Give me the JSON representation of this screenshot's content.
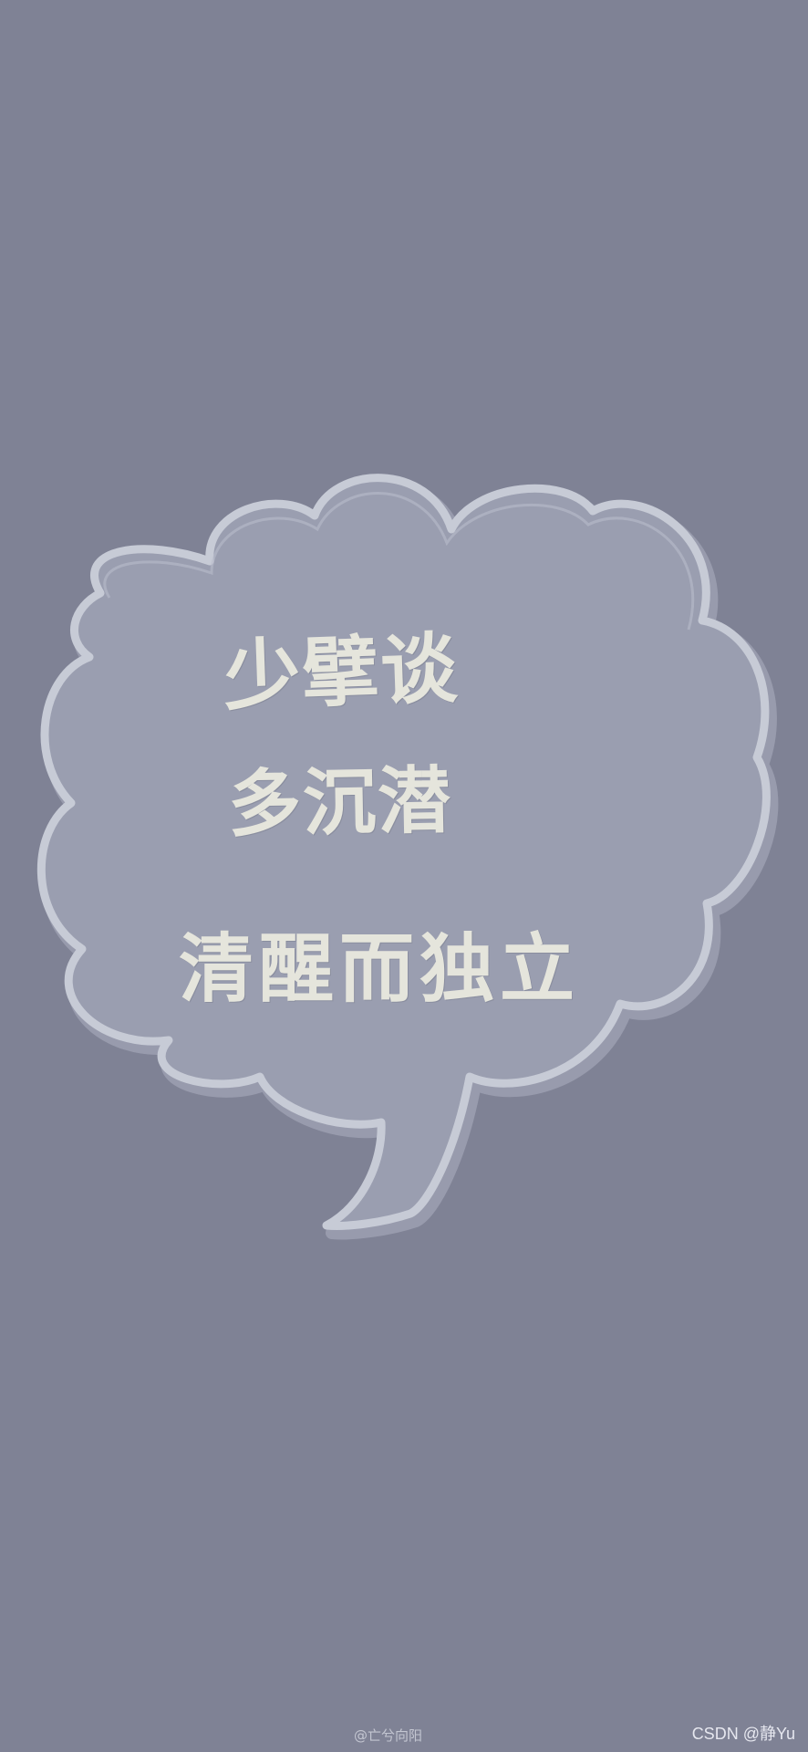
{
  "image": {
    "background_color": "#7f8295",
    "bubble_fill": "#9a9eb0",
    "bubble_outline": "#c7cbd6",
    "text_color": "#e5e5dc"
  },
  "quote": {
    "line_1": "少擘谈",
    "line_2": "多沉潜",
    "line_3": "清醒而独立"
  },
  "footer": {
    "credit": "@亡兮向阳",
    "watermark": "CSDN @静Yu"
  }
}
